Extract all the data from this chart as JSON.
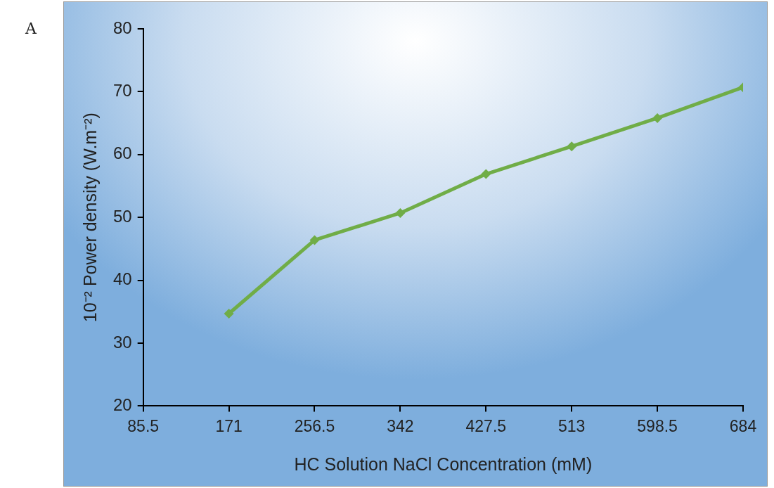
{
  "chart_data": {
    "type": "line",
    "xlabel": "HC Solution NaCl Concentration (mM)",
    "ylabel": "10⁻² Power density (W.m⁻²)",
    "annotations": [
      "A"
    ],
    "x": [
      171,
      256.5,
      342,
      427.5,
      513,
      598.5,
      684
    ],
    "series": [
      {
        "color": "#70ad47",
        "values": [
          34.7,
          46.4,
          50.7,
          56.9,
          61.3,
          65.8,
          70.7
        ]
      }
    ],
    "xlim": [
      85.5,
      684
    ],
    "xticks": [
      {
        "value": 85.5,
        "label": "85.5"
      },
      171,
      {
        "value": 256.5,
        "label": "256.5"
      },
      342,
      {
        "value": 427.5,
        "label": "427.5"
      },
      513,
      {
        "value": 598.5,
        "label": "598.5"
      },
      684
    ],
    "ylim": [
      20,
      80
    ],
    "yticks": [
      20,
      30,
      40,
      50,
      60,
      70,
      80
    ],
    "grid": false,
    "legend": false,
    "marker": "diamond",
    "line_style": "solid"
  }
}
